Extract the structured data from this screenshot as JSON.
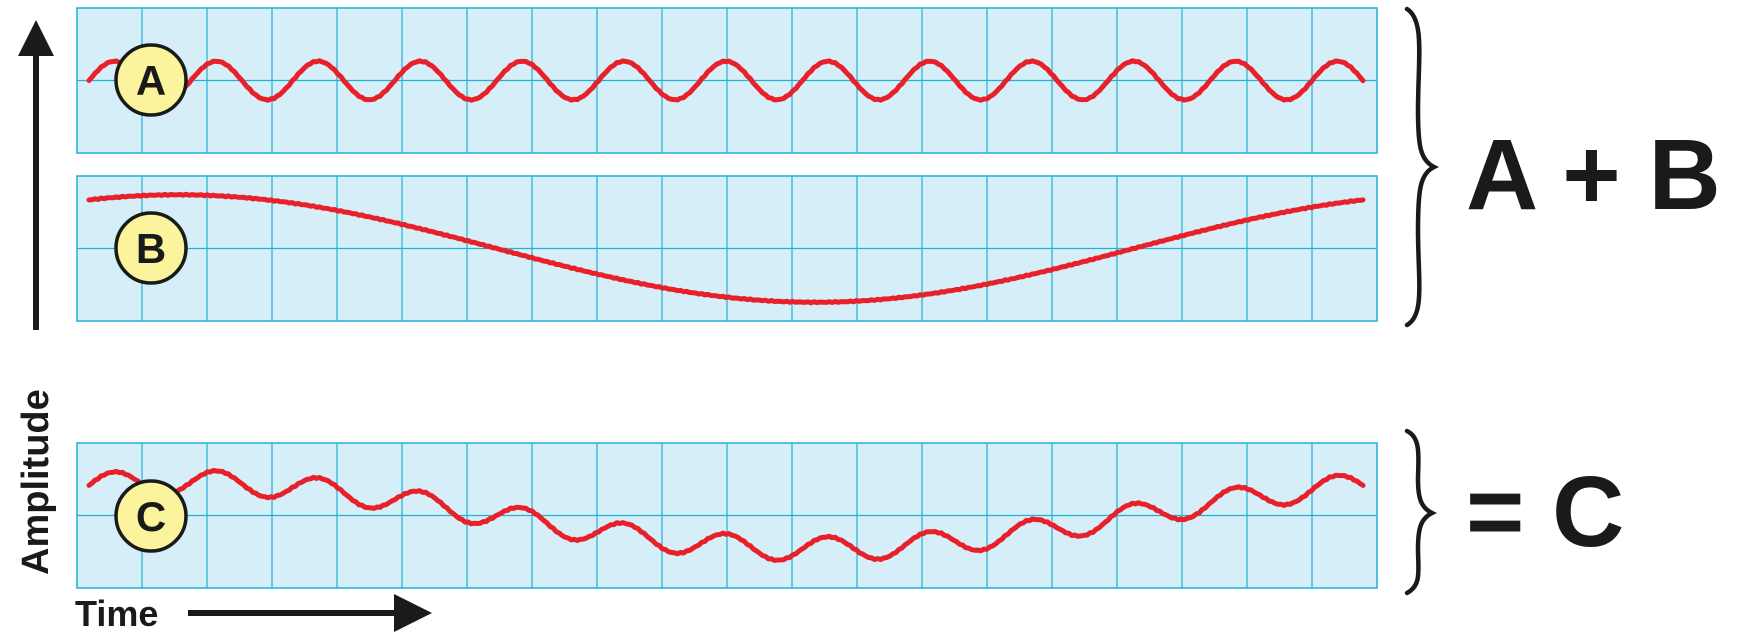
{
  "axis": {
    "y_label": "Amplitude",
    "x_label": "Time"
  },
  "panels": [
    {
      "label": "A",
      "kind": "fast-wave",
      "cycles": 12.5,
      "amplitude": 0.28,
      "phase": 0.0,
      "jitter": 0.5
    },
    {
      "label": "B",
      "kind": "slow-wave",
      "cycles": 1.0,
      "amplitude": 0.78,
      "phase": 0.18,
      "jitter": 0.5
    },
    {
      "label": "C",
      "kind": "sum",
      "jitter": 0.6
    }
  ],
  "sum_text": "A + B",
  "result_text": "= C",
  "colors": {
    "grid_fill": "#d6eef8",
    "grid_line": "#1fb1d6",
    "wave": "#e8202a",
    "badge_fill": "#fbf49c",
    "text": "#1a1a1a"
  }
}
